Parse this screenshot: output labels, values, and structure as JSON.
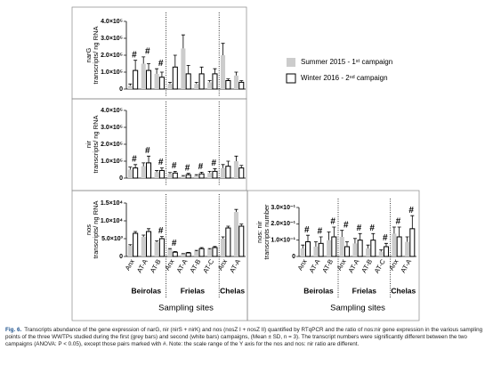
{
  "chart_data": [
    {
      "type": "bar",
      "ylabel": [
        "narG",
        "transcripts/ ng RNA"
      ],
      "ylim": [
        0,
        400000
      ],
      "yticks": [
        0,
        {
          "value": 100000,
          "label": "1.0×10⁵"
        },
        {
          "value": 200000,
          "label": "2.0×10⁵"
        },
        {
          "value": 300000,
          "label": "3.0×10⁵"
        },
        {
          "value": 400000,
          "label": "4.0×10⁵"
        }
      ],
      "legend": "right",
      "series": [
        {
          "name": "Summer 2015 - 1ˢᵗ campaign",
          "color": "#cccccc",
          "values": [
            20000,
            150000,
            90000,
            30000,
            240000,
            30000,
            40000,
            200000,
            80000
          ],
          "errors": [
            10000,
            40000,
            30000,
            10000,
            80000,
            10000,
            10000,
            70000,
            20000
          ]
        },
        {
          "name": "Winter 2016 - 2ⁿᵈ campaign",
          "color": "#ffffff",
          "values": [
            110000,
            110000,
            70000,
            130000,
            90000,
            90000,
            90000,
            50000,
            40000
          ],
          "errors": [
            60000,
            40000,
            30000,
            70000,
            50000,
            40000,
            30000,
            10000,
            10000
          ]
        }
      ],
      "markers": [
        "#",
        "#",
        "#",
        null,
        null,
        null,
        null,
        null,
        null
      ]
    },
    {
      "type": "bar",
      "ylabel": [
        "nir",
        "transcripts/ ng RNA"
      ],
      "ylim": [
        0,
        400000
      ],
      "yticks": [
        0,
        {
          "value": 100000,
          "label": "1.0×10⁵"
        },
        {
          "value": 200000,
          "label": "2.0×10⁵"
        },
        {
          "value": 300000,
          "label": "3.0×10⁵"
        },
        {
          "value": 400000,
          "label": "4.0×10⁵"
        }
      ],
      "series": [
        {
          "color": "#cccccc",
          "values": [
            50000,
            70000,
            35000,
            25000,
            10000,
            15000,
            30000,
            60000,
            100000
          ],
          "errors": [
            15000,
            20000,
            10000,
            8000,
            5000,
            5000,
            10000,
            20000,
            30000
          ]
        },
        {
          "color": "#ffffff",
          "values": [
            60000,
            90000,
            45000,
            30000,
            20000,
            25000,
            40000,
            70000,
            60000
          ],
          "errors": [
            20000,
            40000,
            15000,
            10000,
            8000,
            10000,
            15000,
            30000,
            15000
          ]
        }
      ],
      "markers": [
        "#",
        "#",
        "#",
        "#",
        "#",
        "#",
        "#",
        null,
        null
      ]
    },
    {
      "type": "bar",
      "ylabel": [
        "nos",
        "transcripts/ ng RNA"
      ],
      "ylim": [
        0,
        15000
      ],
      "yticks": [
        0,
        {
          "value": 5000,
          "label": "5.0×10³"
        },
        {
          "value": 10000,
          "label": "1.0×10⁴"
        },
        {
          "value": 15000,
          "label": "1.5×10⁴"
        }
      ],
      "groups": [
        {
          "name": "Beirolas",
          "categories": [
            "Anx",
            "AT-A",
            "AT-B"
          ]
        },
        {
          "name": "Frielas",
          "categories": [
            "Anx",
            "AT-A",
            "AT-B",
            "AT-C"
          ]
        },
        {
          "name": "Chelas",
          "categories": [
            "Anx",
            "AT-A"
          ]
        }
      ],
      "xlabel": "Sampling sites",
      "series": [
        {
          "color": "#cccccc",
          "values": [
            3000,
            5500,
            4000,
            2000,
            700,
            1500,
            2000,
            5000,
            12500
          ],
          "errors": [
            300,
            500,
            400,
            200,
            100,
            200,
            200,
            500,
            700
          ]
        },
        {
          "color": "#ffffff",
          "values": [
            6500,
            7000,
            5000,
            1200,
            1000,
            2200,
            2500,
            8000,
            8500
          ],
          "errors": [
            500,
            800,
            600,
            200,
            150,
            300,
            300,
            500,
            600
          ]
        }
      ],
      "markers": [
        null,
        null,
        "#",
        "#",
        null,
        null,
        null,
        null,
        null
      ]
    },
    {
      "type": "bar",
      "ylabel": [
        "nos: nir",
        "transcripts number"
      ],
      "ylim": [
        0,
        0.3
      ],
      "yticks": [
        0,
        {
          "value": 0.1,
          "label": "1.0×10⁻¹"
        },
        {
          "value": 0.2,
          "label": "2.0×10⁻¹"
        },
        {
          "value": 0.3,
          "label": "3.0×10⁻¹"
        }
      ],
      "groups": [
        {
          "name": "Beirolas",
          "categories": [
            "Anx",
            "AT-A",
            "AT-B"
          ]
        },
        {
          "name": "Frielas",
          "categories": [
            "Anx",
            "AT-A",
            "AT-B",
            "AT-C"
          ]
        },
        {
          "name": "Chelas",
          "categories": [
            "Anx",
            "AT-A"
          ]
        }
      ],
      "xlabel": "Sampling sites",
      "series": [
        {
          "color": "#cccccc",
          "values": [
            0.05,
            0.06,
            0.1,
            0.12,
            0.08,
            0.05,
            0.03,
            0.14,
            0.09
          ],
          "errors": [
            0.02,
            0.03,
            0.05,
            0.04,
            0.03,
            0.02,
            0.01,
            0.04,
            0.03
          ]
        },
        {
          "color": "#ffffff",
          "values": [
            0.09,
            0.08,
            0.12,
            0.06,
            0.1,
            0.1,
            0.06,
            0.12,
            0.17
          ],
          "errors": [
            0.04,
            0.04,
            0.06,
            0.03,
            0.04,
            0.04,
            0.02,
            0.06,
            0.08
          ]
        }
      ],
      "markers": [
        "#",
        "#",
        "#",
        "#",
        "#",
        "#",
        "#",
        "#",
        "#"
      ]
    }
  ],
  "caption": {
    "label": "Fig. 6.",
    "text": "Transcripts abundance of the gene expression of narG, nir (nirS + nirK) and nos (nosZ I + nosZ II) quantified by RTqPCR and the ratio of nos:nir gene expression in the various sampling points of the three WWTPs studied during the first (grey bars) and second (white bars) campaigns, (Mean ± SD, n = 3). The transcript numbers were significantly different between the two campaigns (ANOVA: P < 0.05), except those pairs marked with #. Note: the scale range of the Y axis for the nos and nos: nir ratio are different."
  }
}
